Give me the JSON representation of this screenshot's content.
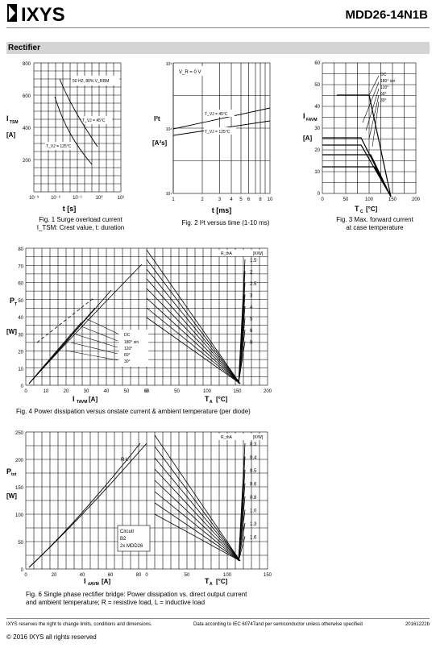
{
  "header": {
    "brand": "IXYS",
    "part_number": "MDD26-14N1B",
    "section_title": "Rectifier"
  },
  "fig1": {
    "caption_line1": "Fig. 1 Surge overload current",
    "caption_line2": "I_TSM: Crest value, t: duration",
    "y_label": "I",
    "y_sub": "TSM",
    "y_unit": "[A]",
    "x_label": "t  [s]",
    "y_ticks": [
      "800",
      "600",
      "400",
      "200"
    ],
    "x_ticks": [
      "10⁻³",
      "10⁻²",
      "10⁻¹",
      "10⁰",
      "10¹"
    ],
    "ann_condition": "50 HZ, 80% V_RRM",
    "ann_45": "T_VJ = 45°C",
    "ann_125": "T_VJ = 125°C"
  },
  "fig2": {
    "caption": "Fig. 2 I²t versus time (1-10 ms)",
    "y_label": "I²t",
    "y_unit": "[A²s]",
    "x_label": "t  [ms]",
    "y_ticks": [
      "10³",
      "10²",
      "10¹"
    ],
    "x_ticks": [
      "1",
      "2",
      "3",
      "4",
      "5",
      "6",
      "8",
      "10"
    ],
    "ann_vr": "V_R = 0 V",
    "ann_45": "T_VJ = 45°C",
    "ann_125": "T_VJ = 125°C"
  },
  "fig3": {
    "caption_line1": "Fig. 3 Max. forward current",
    "caption_line2": "at case temperature",
    "y_label": "I",
    "y_sub": "FAVM",
    "y_unit": "[A]",
    "x_label": "T",
    "x_sub": "C",
    "x_unit": "[°C]",
    "y_ticks": [
      "60",
      "50",
      "40",
      "30",
      "20",
      "10",
      "0"
    ],
    "x_ticks": [
      "0",
      "50",
      "100",
      "150",
      "200"
    ],
    "legend": [
      "DC",
      "180° sin",
      "120°",
      "60°",
      "30°"
    ]
  },
  "fig4": {
    "caption": "Fig. 4  Power dissipation versus onstate current & ambient temperature (per diode)",
    "y_label": "P",
    "y_sub": "T",
    "y_unit": "[W]",
    "x1_label": "I",
    "x1_sub": "TAVM",
    "x1_unit": "[A]",
    "x2_label": "T",
    "x2_sub": "A",
    "x2_unit": "[°C]",
    "y_ticks": [
      "80",
      "70",
      "60",
      "50",
      "40",
      "30",
      "20",
      "10",
      "0"
    ],
    "x1_ticks": [
      "0",
      "10",
      "20",
      "30",
      "40",
      "50",
      "60"
    ],
    "x2_ticks": [
      "0",
      "50",
      "100",
      "150",
      "200"
    ],
    "rth_label": "R_thA",
    "rth_unit": "[K/W]",
    "rth_values": [
      "1.5",
      "2",
      "2.5",
      "3",
      "4",
      "5",
      "6",
      "8"
    ],
    "legend": [
      "DC",
      "180° sin",
      "120°",
      "60°",
      "30°"
    ]
  },
  "fig6": {
    "caption_line1": "Fig. 6  Single phase rectifier bridge: Power dissipation vs. direct output current",
    "caption_line2": "and ambient temperature; R = resistive load, L = inductive load",
    "y_label": "P",
    "y_sub": "tot",
    "y_unit": "[W]",
    "x1_label": "I",
    "x1_sub": "dAVM",
    "x1_unit": "[A]",
    "x2_label": "T",
    "x2_sub": "A",
    "x2_unit": "[°C]",
    "y_ticks": [
      "250",
      "200",
      "150",
      "100",
      "50",
      "0"
    ],
    "x1_ticks": [
      "0",
      "20",
      "40",
      "60",
      "80"
    ],
    "x2_ticks": [
      "0",
      "50",
      "100",
      "150"
    ],
    "rth_label": "R_thA",
    "rth_unit": "[K/W]",
    "rth_values": [
      "0.3",
      "0.4",
      "0.5",
      "0.6",
      "0.8",
      "1.0",
      "1.3",
      "1.6"
    ],
    "rl_label": "R    L",
    "circuit": [
      "Circuit",
      "B2",
      "2x MDD26"
    ]
  },
  "footer": {
    "left": "IXYS reserves the right to change limits, conditions and dimensions.",
    "mid": "Data according to IEC 60747and per semiconductor unless otherwise specified",
    "right": "20161222b",
    "copyright": "© 2016 IXYS all rights reserved"
  }
}
